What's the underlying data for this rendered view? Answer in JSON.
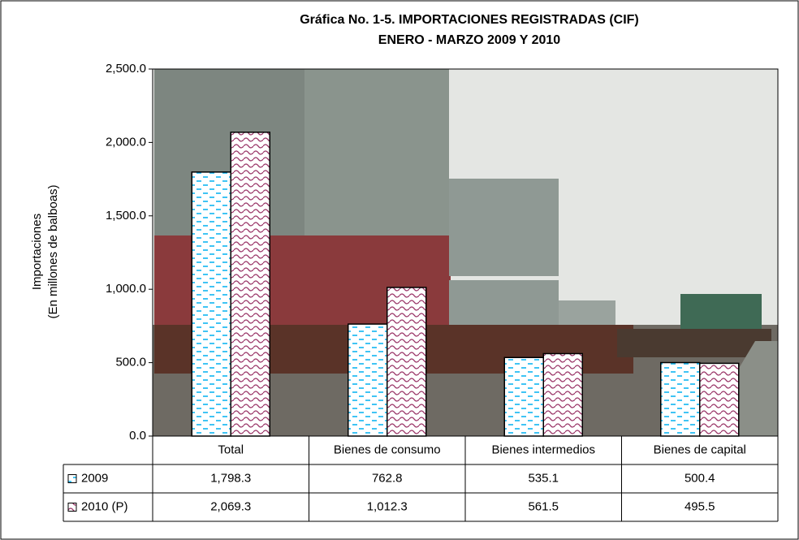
{
  "chart_data": {
    "type": "bar",
    "title": "Gráfica No. 1-5.  IMPORTACIONES REGISTRADAS (CIF)",
    "subtitle": "ENERO - MARZO 2009 Y 2010",
    "y_label": [
      "Importaciones",
      "(En millones de balboas)"
    ],
    "categories": [
      "Total",
      "Bienes de consumo",
      "Bienes intermedios",
      "Bienes de capital"
    ],
    "series": [
      {
        "name": "2009",
        "color": "#00b0f0",
        "values": [
          1798.3,
          762.8,
          535.1,
          500.4
        ],
        "value_labels": [
          "1,798.3",
          "762.8",
          "535.1",
          "500.4"
        ]
      },
      {
        "name": "2010 (P)",
        "color": "#993366",
        "values": [
          2069.3,
          1012.3,
          561.5,
          495.5
        ],
        "value_labels": [
          "2,069.3",
          "1,012.3",
          "561.5",
          "495.5"
        ]
      }
    ],
    "ylim": [
      0,
      2500
    ],
    "yticks": [
      {
        "value": 0,
        "label": "0.0"
      },
      {
        "value": 500,
        "label": "500.0"
      },
      {
        "value": 1000,
        "label": "1,000.0"
      },
      {
        "value": 1500,
        "label": "1,500.0"
      },
      {
        "value": 2000,
        "label": "2,000.0"
      },
      {
        "value": 2500,
        "label": "2,500.0"
      }
    ]
  }
}
